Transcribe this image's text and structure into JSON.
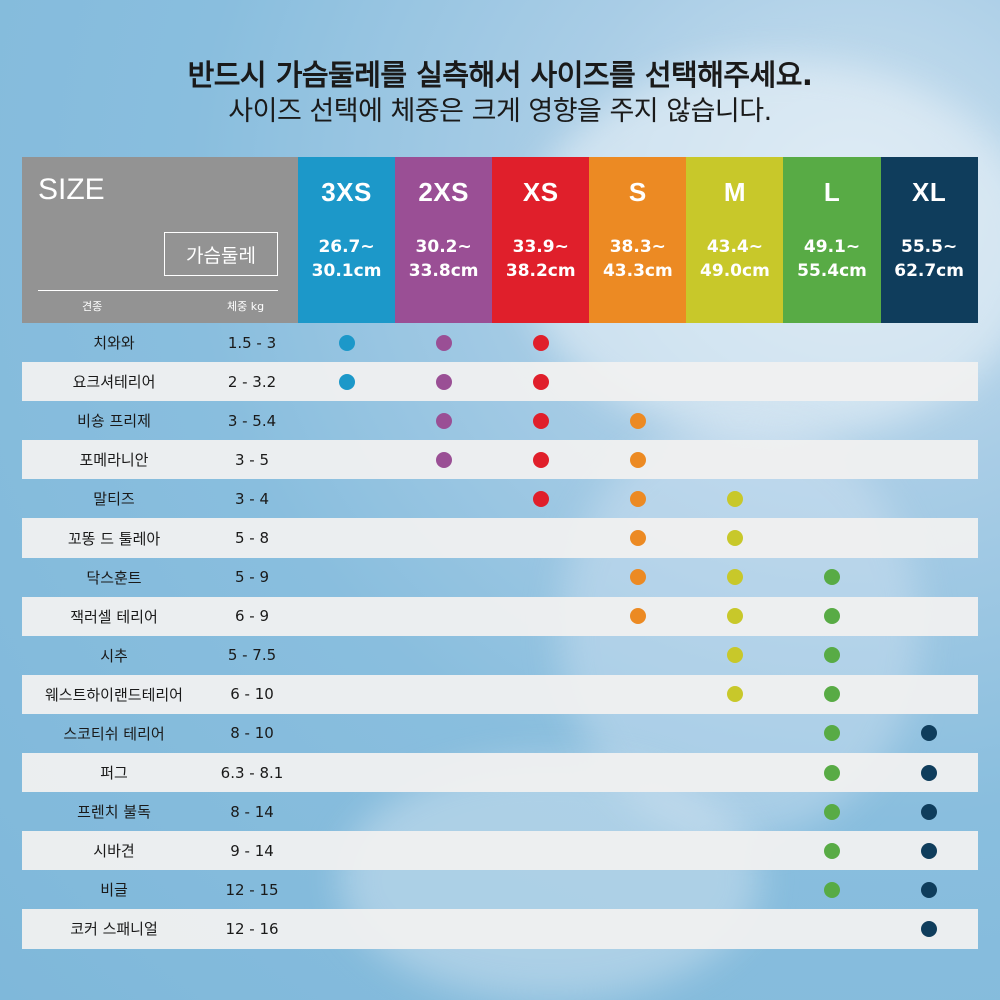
{
  "heading": {
    "line1": "반드시 가슴둘레를 실측해서 사이즈를 선택해주세요.",
    "line2": "사이즈 선택에 체중은 크게 영향을 주지 않습니다."
  },
  "table": {
    "size_label": "SIZE",
    "chest_label": "가슴둘레",
    "breed_label": "견종",
    "weight_label": "체중 kg",
    "sizes": [
      {
        "name": "3XS",
        "range1": "26.7~",
        "range2": "30.1cm",
        "color": "#1c98c9"
      },
      {
        "name": "2XS",
        "range1": "30.2~",
        "range2": "33.8cm",
        "color": "#9a4f95"
      },
      {
        "name": "XS",
        "range1": "33.9~",
        "range2": "38.2cm",
        "color": "#e01f2b"
      },
      {
        "name": "S",
        "range1": "38.3~",
        "range2": "43.3cm",
        "color": "#ec8a23"
      },
      {
        "name": "M",
        "range1": "43.4~",
        "range2": "49.0cm",
        "color": "#c8c82a"
      },
      {
        "name": "L",
        "range1": "49.1~",
        "range2": "55.4cm",
        "color": "#58ab45"
      },
      {
        "name": "XL",
        "range1": "55.5~",
        "range2": "62.7cm",
        "color": "#0f3d5c"
      }
    ],
    "rows": [
      {
        "breed": "치와와",
        "weight": "1.5 - 3",
        "fits": [
          "3XS",
          "2XS",
          "XS"
        ]
      },
      {
        "breed": "요크셔테리어",
        "weight": "2 - 3.2",
        "fits": [
          "3XS",
          "2XS",
          "XS"
        ]
      },
      {
        "breed": "비숑 프리제",
        "weight": "3 - 5.4",
        "fits": [
          "2XS",
          "XS",
          "S"
        ]
      },
      {
        "breed": "포메라니안",
        "weight": "3 - 5",
        "fits": [
          "2XS",
          "XS",
          "S"
        ]
      },
      {
        "breed": "말티즈",
        "weight": "3 - 4",
        "fits": [
          "XS",
          "S",
          "M"
        ]
      },
      {
        "breed": "꼬똥 드 툴레아",
        "weight": "5 - 8",
        "fits": [
          "S",
          "M"
        ]
      },
      {
        "breed": "닥스훈트",
        "weight": "5 - 9",
        "fits": [
          "S",
          "M",
          "L"
        ]
      },
      {
        "breed": "잭러셀 테리어",
        "weight": "6 - 9",
        "fits": [
          "S",
          "M",
          "L"
        ]
      },
      {
        "breed": "시추",
        "weight": "5 - 7.5",
        "fits": [
          "M",
          "L"
        ]
      },
      {
        "breed": "웨스트하이랜드테리어",
        "weight": "6 - 10",
        "fits": [
          "M",
          "L"
        ]
      },
      {
        "breed": "스코티쉬 테리어",
        "weight": "8 - 10",
        "fits": [
          "L",
          "XL"
        ]
      },
      {
        "breed": "퍼그",
        "weight": "6.3 - 8.1",
        "fits": [
          "L",
          "XL"
        ]
      },
      {
        "breed": "프렌치 불독",
        "weight": "8 - 14",
        "fits": [
          "L",
          "XL"
        ]
      },
      {
        "breed": "시바견",
        "weight": "9 - 14",
        "fits": [
          "L",
          "XL"
        ]
      },
      {
        "breed": "비글",
        "weight": "12 - 15",
        "fits": [
          "L",
          "XL"
        ]
      },
      {
        "breed": "코커 스패니얼",
        "weight": "12 - 16",
        "fits": [
          "XL"
        ]
      }
    ]
  }
}
